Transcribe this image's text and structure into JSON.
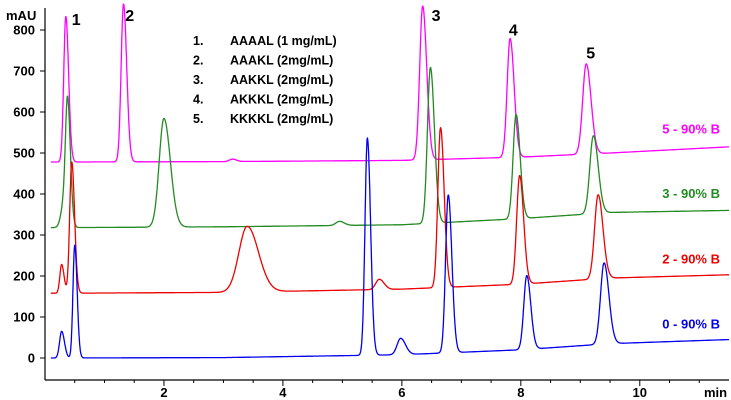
{
  "chart_data": {
    "type": "line",
    "ylabel": "mAU",
    "xlabel": "min",
    "xlim": [
      0,
      11.5
    ],
    "ylim": [
      -30,
      870
    ],
    "x_ticks": [
      2,
      4,
      6,
      8,
      10
    ],
    "y_ticks": [
      0,
      100,
      200,
      300,
      400,
      500,
      600,
      700,
      800
    ],
    "grid": false,
    "legend_position": "top-center",
    "legend": [
      {
        "num": "1.",
        "text": "AAAAL (1 mg/mL)"
      },
      {
        "num": "2.",
        "text": "AAAKL (2mg/mL)"
      },
      {
        "num": "3.",
        "text": "AAKKL (2mg/mL)"
      },
      {
        "num": "4.",
        "text": "AKKKL (2mg/mL)"
      },
      {
        "num": "5.",
        "text": "KKKKL (2mg/mL)"
      }
    ],
    "peak_labels": [
      {
        "text": "1",
        "x": 0.45,
        "y": 812
      },
      {
        "text": "2",
        "x": 1.35,
        "y": 822
      },
      {
        "text": "3",
        "x": 6.5,
        "y": 822
      },
      {
        "text": "4",
        "x": 7.8,
        "y": 786
      },
      {
        "text": "5",
        "x": 9.1,
        "y": 730
      }
    ],
    "series": [
      {
        "name": "5 - 90% B",
        "color": "#ff00ff",
        "label_y": 548,
        "baseline": [
          [
            0,
            478
          ],
          [
            0.3,
            478
          ],
          [
            3.0,
            479
          ],
          [
            6.0,
            482
          ],
          [
            8.0,
            490
          ],
          [
            9.5,
            500
          ],
          [
            11.5,
            515
          ]
        ],
        "peaks": [
          [
            0.35,
            355,
            0.035
          ],
          [
            1.32,
            385,
            0.04
          ],
          [
            3.15,
            6,
            0.05
          ],
          [
            6.35,
            375,
            0.05
          ],
          [
            7.82,
            290,
            0.05
          ],
          [
            9.1,
            220,
            0.06
          ]
        ]
      },
      {
        "name": "3 - 90% B",
        "color": "#228b22",
        "label_y": 390,
        "baseline": [
          [
            0,
            318
          ],
          [
            0.3,
            318
          ],
          [
            3.0,
            320
          ],
          [
            6.0,
            325
          ],
          [
            8.0,
            340
          ],
          [
            9.5,
            355
          ],
          [
            11.5,
            360
          ]
        ],
        "peaks": [
          [
            0.32,
            60,
            0.05
          ],
          [
            0.38,
            280,
            0.035
          ],
          [
            2.0,
            265,
            0.08
          ],
          [
            4.95,
            10,
            0.06
          ],
          [
            6.48,
            380,
            0.05
          ],
          [
            7.92,
            255,
            0.05
          ],
          [
            9.22,
            190,
            0.06
          ]
        ]
      },
      {
        "name": "2 - 90% B",
        "color": "#ee0000",
        "label_y": 230,
        "baseline": [
          [
            0,
            158
          ],
          [
            0.3,
            158
          ],
          [
            3.0,
            160
          ],
          [
            6.0,
            168
          ],
          [
            8.0,
            180
          ],
          [
            9.5,
            195
          ],
          [
            11.5,
            203
          ]
        ],
        "peaks": [
          [
            0.28,
            70,
            0.03
          ],
          [
            0.45,
            320,
            0.035
          ],
          [
            3.4,
            160,
            0.14
          ],
          [
            5.62,
            25,
            0.06
          ],
          [
            6.65,
            390,
            0.045
          ],
          [
            7.98,
            265,
            0.05
          ],
          [
            9.3,
            205,
            0.06
          ]
        ]
      },
      {
        "name": "0 - 90% B",
        "color": "#0000ee",
        "label_y": 72,
        "baseline": [
          [
            0,
            0
          ],
          [
            0.3,
            0
          ],
          [
            3.0,
            1
          ],
          [
            6.0,
            8
          ],
          [
            8.0,
            20
          ],
          [
            9.5,
            35
          ],
          [
            11.5,
            45
          ]
        ],
        "peaks": [
          [
            0.28,
            65,
            0.035
          ],
          [
            0.5,
            275,
            0.03
          ],
          [
            5.42,
            530,
            0.04
          ],
          [
            5.98,
            40,
            0.06
          ],
          [
            6.78,
            385,
            0.045
          ],
          [
            8.1,
            180,
            0.05
          ],
          [
            9.4,
            198,
            0.06
          ]
        ]
      }
    ]
  }
}
